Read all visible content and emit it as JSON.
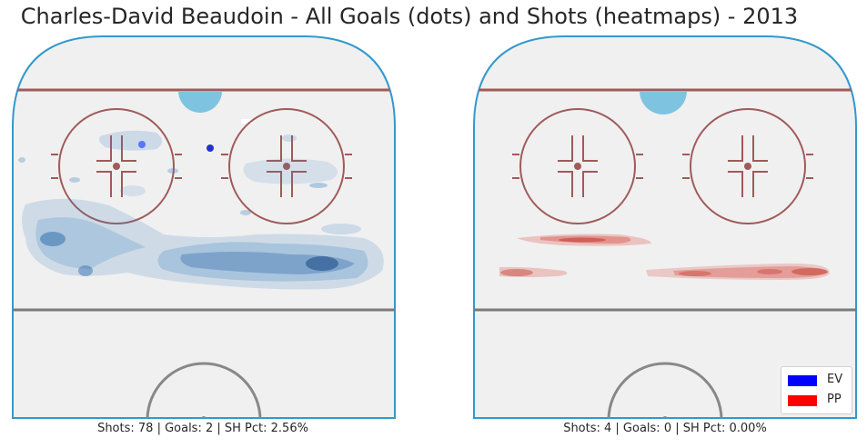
{
  "title": "Charles-David Beaudoin - All Goals (dots) and Shots (heatmaps) - 2013",
  "colors": {
    "ev": "#0000ff",
    "pp": "#ff0000",
    "ice": "#f0f0f0",
    "boards": "#3399cc",
    "goal_line": "#a05a5a",
    "faceoff": "#a05a5a",
    "crease": "#7ec4e0",
    "blue_line": "#7a7a7a",
    "center_circle": "#888888"
  },
  "legend": [
    {
      "key": "ev",
      "label": "EV",
      "color": "#0000ff"
    },
    {
      "key": "pp",
      "label": "PP",
      "color": "#ff0000"
    }
  ],
  "chart_data": [
    {
      "type": "heatmap",
      "panel": "left",
      "strength": "EV",
      "caption": "Shots: 78 | Goals: 2 | SH Pct: 2.56%",
      "shots": 78,
      "goals": 2,
      "sh_pct": "2.56%",
      "goal_dots": [
        {
          "label": "goal-1",
          "color": "#5577ff"
        },
        {
          "label": "goal-2",
          "color": "#2233cc"
        }
      ],
      "heatmap_color": "#3a7fc0"
    },
    {
      "type": "heatmap",
      "panel": "right",
      "strength": "PP",
      "caption": "Shots: 4 | Goals: 0 | SH Pct: 0.00%",
      "shots": 4,
      "goals": 0,
      "sh_pct": "0.00%",
      "goal_dots": [],
      "heatmap_color": "#d83a30"
    }
  ]
}
